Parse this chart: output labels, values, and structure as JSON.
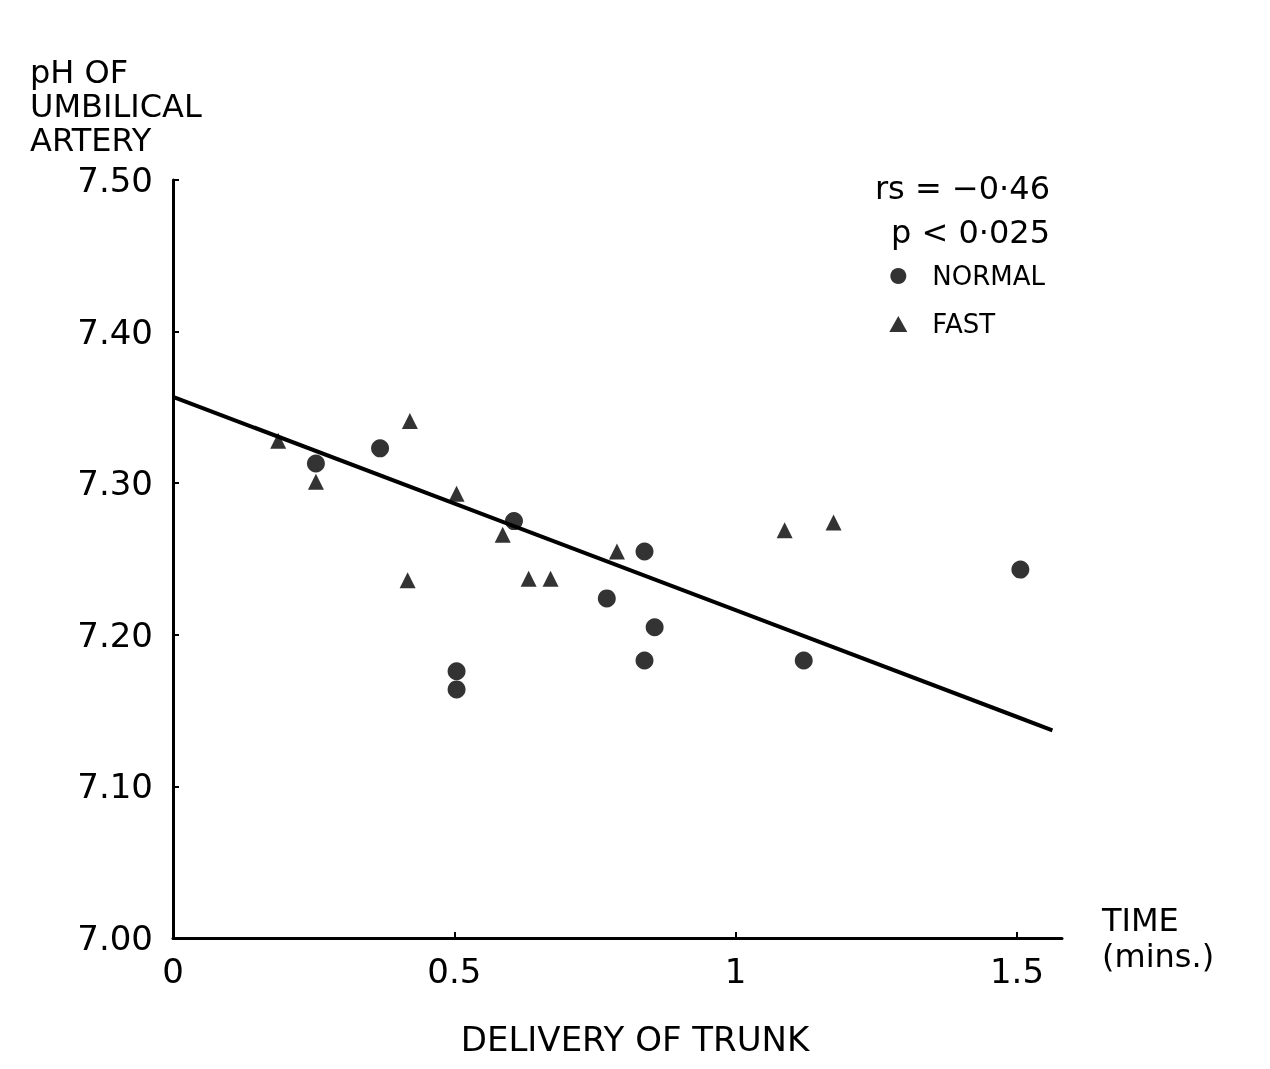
{
  "chart_data": {
    "type": "scatter",
    "ylabel": "pH OF\nUMBILICAL\nARTERY",
    "xlabel": "TIME\n(mins.)",
    "annotations": [
      "rs = −0·46",
      "p < 0·025",
      "DELIVERY OF TRUNK"
    ],
    "xlim": [
      0,
      1.58
    ],
    "xticks": [
      0,
      0.5,
      1,
      1.5
    ],
    "ylim": [
      7.0,
      7.5
    ],
    "yticks": [
      {
        "value": 7.0,
        "label": "7.00"
      },
      {
        "value": 7.1,
        "label": "7.10"
      },
      {
        "value": 7.2,
        "label": "7.20"
      },
      {
        "value": 7.3,
        "label": "7.30"
      },
      {
        "value": 7.4,
        "label": "7.40"
      },
      {
        "value": 7.5,
        "label": "7.50"
      }
    ],
    "grid": false,
    "legend": "top right",
    "series": [
      {
        "name": "NORMAL",
        "color": "#000000",
        "marker": "circle",
        "x": [
          0.254,
          0.368,
          0.504,
          0.504,
          0.606,
          0.771,
          0.838,
          0.856,
          0.838,
          1.121,
          1.506
        ],
        "values": [
          7.313,
          7.323,
          7.176,
          7.164,
          7.275,
          7.224,
          7.255,
          7.205,
          7.183,
          7.183,
          7.243
        ]
      },
      {
        "name": "FAST",
        "color": "#000000",
        "marker": "triangle",
        "x": [
          0.187,
          0.254,
          0.421,
          0.417,
          0.504,
          0.586,
          0.632,
          0.671,
          0.789,
          1.087,
          1.174
        ],
        "values": [
          7.328,
          7.301,
          7.341,
          7.236,
          7.293,
          7.266,
          7.237,
          7.237,
          7.255,
          7.269,
          7.274
        ]
      },
      {
        "type": "line",
        "color": "#000000",
        "marker": "none",
        "line_style": "solid",
        "x": [
          0,
          1.563
        ],
        "values": [
          7.357,
          7.137
        ]
      }
    ]
  }
}
